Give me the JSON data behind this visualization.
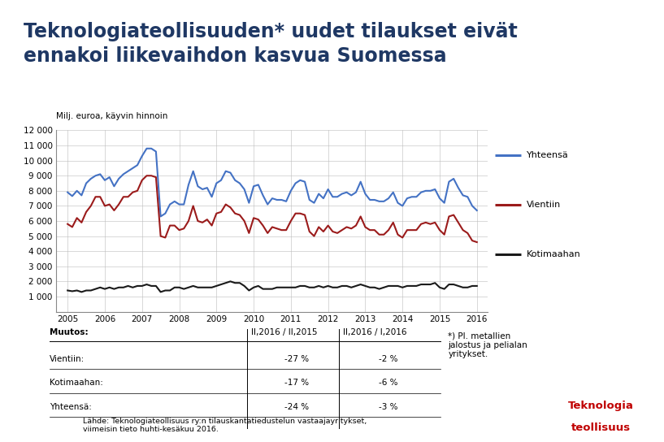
{
  "title_line1": "Teknologiateollisuuden* uudet tilaukset eivät",
  "title_line2": "ennakoi liikevaihdon kasvua Suomessa",
  "subtitle": "Milj. euroa, käyvin hinnoin",
  "yticks": [
    0,
    1000,
    2000,
    3000,
    4000,
    5000,
    6000,
    7000,
    8000,
    9000,
    10000,
    11000,
    12000
  ],
  "ytick_labels": [
    "",
    "1 000",
    "2 000",
    "3 000",
    "4 000",
    "5 000",
    "6 000",
    "7 000",
    "8 000",
    "9 000",
    "10 000",
    "11 000",
    "12 000"
  ],
  "xtick_labels": [
    "2005",
    "2006",
    "2007",
    "2008",
    "2009",
    "2010",
    "2011",
    "2012",
    "2013",
    "2014",
    "2015",
    "2016"
  ],
  "legend_labels": [
    "Yhteensä",
    "Vientiin",
    "Kotimaahan"
  ],
  "colors": {
    "yhteensa": "#4472C4",
    "vientiin": "#9B1B1B",
    "kotimaahan": "#1A1A1A",
    "title_text": "#1F3864",
    "grid": "#AAAAAA"
  },
  "yhteensa": [
    7900,
    7650,
    8000,
    7700,
    8500,
    8800,
    9000,
    9100,
    8700,
    8900,
    8300,
    8800,
    9100,
    9300,
    9500,
    9700,
    10300,
    10800,
    10800,
    10600,
    6300,
    6500,
    7100,
    7300,
    7100,
    7100,
    8400,
    9300,
    8300,
    8100,
    8200,
    7600,
    8500,
    8700,
    9300,
    9200,
    8700,
    8500,
    8100,
    7200,
    8300,
    8400,
    7700,
    7100,
    7500,
    7400,
    7400,
    7300,
    8000,
    8500,
    8700,
    8600,
    7400,
    7200,
    7800,
    7500,
    8100,
    7600,
    7600,
    7800,
    7900,
    7700,
    7900,
    8600,
    7800,
    7400,
    7400,
    7300,
    7300,
    7500,
    7900,
    7200,
    7000,
    7500,
    7600,
    7600,
    7900,
    8000,
    8000,
    8100,
    7500,
    7200,
    8600,
    8800,
    8200,
    7700,
    7600,
    7000,
    6700
  ],
  "vientiin": [
    5800,
    5600,
    6200,
    5900,
    6600,
    7000,
    7600,
    7600,
    7000,
    7100,
    6700,
    7100,
    7600,
    7600,
    7900,
    8000,
    8700,
    9000,
    9000,
    8900,
    5000,
    4900,
    5700,
    5700,
    5400,
    5500,
    6000,
    7000,
    6000,
    5900,
    6100,
    5700,
    6500,
    6600,
    7100,
    6900,
    6500,
    6400,
    6000,
    5200,
    6200,
    6100,
    5700,
    5200,
    5600,
    5500,
    5400,
    5400,
    6000,
    6500,
    6500,
    6400,
    5300,
    5000,
    5600,
    5300,
    5700,
    5300,
    5200,
    5400,
    5600,
    5500,
    5700,
    6300,
    5600,
    5400,
    5400,
    5100,
    5100,
    5400,
    5900,
    5100,
    4900,
    5400,
    5400,
    5400,
    5800,
    5900,
    5800,
    5900,
    5400,
    5100,
    6300,
    6400,
    5900,
    5400,
    5200,
    4700,
    4600
  ],
  "kotimaahan": [
    1400,
    1350,
    1400,
    1300,
    1400,
    1400,
    1500,
    1600,
    1500,
    1600,
    1500,
    1600,
    1600,
    1700,
    1600,
    1700,
    1700,
    1800,
    1700,
    1700,
    1300,
    1400,
    1400,
    1600,
    1600,
    1500,
    1600,
    1700,
    1600,
    1600,
    1600,
    1600,
    1700,
    1800,
    1900,
    2000,
    1900,
    1900,
    1700,
    1400,
    1600,
    1700,
    1500,
    1500,
    1500,
    1600,
    1600,
    1600,
    1600,
    1600,
    1700,
    1700,
    1600,
    1600,
    1700,
    1600,
    1700,
    1600,
    1600,
    1700,
    1700,
    1600,
    1700,
    1800,
    1700,
    1600,
    1600,
    1500,
    1600,
    1700,
    1700,
    1700,
    1600,
    1700,
    1700,
    1700,
    1800,
    1800,
    1800,
    1900,
    1600,
    1500,
    1800,
    1800,
    1700,
    1600,
    1600,
    1700,
    1700
  ],
  "table_headers": [
    "Muutos:",
    "II,2016 / II,2015",
    "II,2016 / I,2016"
  ],
  "table_rows": [
    [
      "Vientiin:",
      "-27 %",
      "-2 %"
    ],
    [
      "Kotimaahan:",
      "-17 %",
      "-6 %"
    ],
    [
      "Yhteensä:",
      "-24 %",
      "-3 %"
    ]
  ],
  "footnote_star": "*) Pl. metallien\njalostus ja pelialan\nyritykset.",
  "footnote_source": "Lähde: Teknologiateollisuus ry:n tilauskantatiedustelun vastaajayritykset,\nviimeisin tieto huhti-kesäkuu 2016.",
  "logo_line1": "Teknologia",
  "logo_line2": "teollisuus",
  "logo_color": "#C00000"
}
